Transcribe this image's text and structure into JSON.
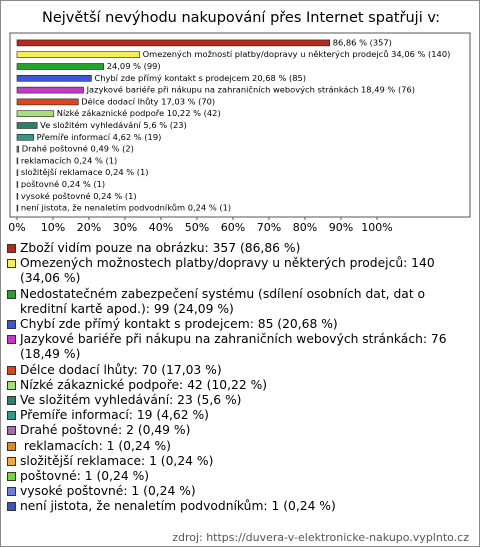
{
  "chart_data": {
    "type": "hbar",
    "title": "Největší nevýhodu nakupování přes Internet spatřuji v:",
    "values": [
      86.86,
      34.06,
      24.09,
      20.68,
      18.49,
      17.03,
      10.22,
      5.6,
      4.62,
      0.49,
      0.24,
      0.24,
      0.24,
      0.24,
      0.24
    ],
    "value_labels": [
      "86,86 % (357)",
      "Omezených možností platby/dopravy u některých prodejců 34,06 % (140)",
      "24,09 % (99)",
      "Chybí zde přímý kontakt s prodejcem 20,68 % (85)",
      "Jazykové bariéře při nákupu na zahraničních webových stránkách 18,49 % (76)",
      "Délce dodací lhůty 17,03 % (70)",
      "Nízké zákaznické podpoře 10,22 % (42)",
      "Ve složitém vyhledávání 5,6 % (23)",
      "Přemíře informací 4,62 % (19)",
      "Drahé poštovné 0,49 % (2)",
      " reklamacích 0,24 % (1)",
      "složitější reklamace 0,24 % (1)",
      "poštovné 0,24 % (1)",
      "vysoké poštovné 0,24 % (1)",
      "není jistota, že nenaletím podvodníkům 0,24 % (1)"
    ],
    "legend_labels": [
      "Zboží vidím pouze na obrázku: 357 (86,86 %)",
      "Omezených možnostech platby/dopravy u některých prodejců: 140 (34,06 %)",
      "Nedostatečném zabezpečení systému (sdílení osobních dat, dat o kreditní kartě apod.): 99 (24,09 %)",
      "Chybí zde přímý kontakt s prodejcem: 85 (20,68 %)",
      "Jazykové bariéře při nákupu na zahraničních webových stránkách: 76 (18,49 %)",
      "Délce dodací lhůty: 70 (17,03 %)",
      "Nízké zákaznické podpoře: 42 (10,22 %)",
      "Ve složitém vyhledávání: 23 (5,6 %)",
      "Přemíře informací: 19 (4,62 %)",
      "Drahé poštovné: 2 (0,49 %)",
      " reklamacích: 1 (0,24 %)",
      "složitější reklamace: 1 (0,24 %)",
      "poštovné: 1 (0,24 %)",
      "vysoké poštovné: 1 (0,24 %)",
      "není jistota, že nenaletím podvodníkům: 1 (0,24 %)"
    ],
    "colors": [
      "#b5281e",
      "#f6ee55",
      "#23a52c",
      "#3f55d8",
      "#c43ac4",
      "#d9481c",
      "#a4e07a",
      "#2f7d6a",
      "#2f9a86",
      "#a86ab0",
      "#e08a1e",
      "#f0a83a",
      "#72d83a",
      "#6e7de0",
      "#3553b8"
    ],
    "xlim": [
      0,
      100
    ],
    "xticks": [
      {
        "value": 0,
        "label": "0%"
      },
      {
        "value": 10,
        "label": "10%"
      },
      {
        "value": 20,
        "label": "20%"
      },
      {
        "value": 30,
        "label": "30%"
      },
      {
        "value": 40,
        "label": "40%"
      },
      {
        "value": 50,
        "label": "50%"
      },
      {
        "value": 60,
        "label": "60%"
      },
      {
        "value": 70,
        "label": "70%"
      },
      {
        "value": 80,
        "label": "80%"
      },
      {
        "value": 90,
        "label": "90%"
      },
      {
        "value": 100,
        "label": "100%"
      }
    ],
    "source": "zdroj: https://duvera-v-elektronicke-nakupo.vyplnto.cz"
  }
}
